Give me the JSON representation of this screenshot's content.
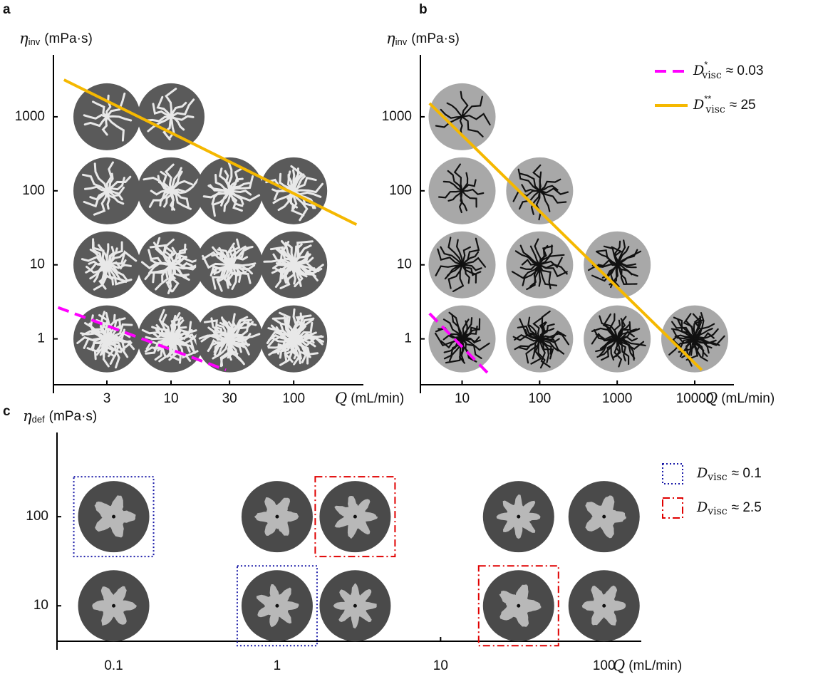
{
  "chart_data": [
    {
      "type": "scatter",
      "panel": "a",
      "xlog": true,
      "ylog": true,
      "xlim": [
        1.1,
        370
      ],
      "ylim": [
        0.24,
        5750
      ],
      "xticks": [
        3,
        10,
        30,
        100
      ],
      "yticks": [
        1,
        10,
        100,
        1000
      ],
      "x_label": {
        "symbol": "Q",
        "text": "(mL/min)"
      },
      "y_label": {
        "symbol": "η",
        "sub": "inv",
        "text": "(mPa·s)"
      },
      "disc_color": "#5a5a5a",
      "pattern_color": "#e8e8e8",
      "points": {
        "x": [
          3,
          10,
          3,
          10,
          30,
          100,
          3,
          10,
          30,
          100,
          3,
          10,
          30,
          100
        ],
        "y": [
          1000,
          1000,
          100,
          100,
          100,
          100,
          10,
          10,
          10,
          10,
          1,
          1,
          1,
          1
        ]
      },
      "series": [
        {
          "color": "#f5b800",
          "dash": "solid",
          "x": [
            1.34,
            325
          ],
          "y": [
            3160,
            35
          ]
        },
        {
          "color": "#ff00ff",
          "dash": "dashed",
          "x": [
            1.2,
            28
          ],
          "y": [
            2.65,
            0.38
          ]
        }
      ]
    },
    {
      "type": "scatter",
      "panel": "b",
      "xlog": true,
      "ylog": true,
      "xlim": [
        2.9,
        32000
      ],
      "ylim": [
        0.24,
        5750
      ],
      "xticks": [
        10,
        100,
        1000,
        10000
      ],
      "yticks": [
        1,
        10,
        100,
        1000
      ],
      "x_label": {
        "symbol": "Q",
        "text": "(mL/min)"
      },
      "y_label": {
        "symbol": "η",
        "sub": "inv",
        "text": "(mPa·s)"
      },
      "disc_color": "#a8a8a8",
      "pattern_color": "#111111",
      "points": {
        "x": [
          10,
          10,
          100,
          10,
          100,
          1000,
          10,
          100,
          1000,
          10000
        ],
        "y": [
          1000,
          100,
          100,
          10,
          10,
          10,
          1,
          1,
          1,
          1
        ]
      },
      "legend": "top-right",
      "series": [
        {
          "name": {
            "base": "D",
            "sup": "*",
            "sub": "visc",
            "text": "≈ 0.03"
          },
          "color": "#ff00ff",
          "dash": "dashed",
          "x": [
            3.8,
            23
          ],
          "y": [
            2.2,
            0.32
          ]
        },
        {
          "name": {
            "base": "D",
            "sup": "**",
            "sub": "visc",
            "text": "≈ 25"
          },
          "color": "#f5b800",
          "dash": "solid",
          "x": [
            3.8,
            12300
          ],
          "y": [
            1520,
            0.38
          ]
        }
      ]
    },
    {
      "type": "scatter",
      "panel": "c",
      "xlog": true,
      "ylog": true,
      "xlim": [
        0.045,
        169
      ],
      "ylim": [
        4,
        760
      ],
      "xticks": [
        0.1,
        1,
        10,
        100
      ],
      "yticks": [
        10,
        100
      ],
      "x_label": {
        "symbol": "Q",
        "text": "(mL/min)"
      },
      "y_label": {
        "symbol": "η",
        "sub": "def",
        "text": "(mPa·s)"
      },
      "disc_color": "#4a4a4a",
      "pattern_color": "#b8b8b8",
      "points": {
        "x": [
          0.1,
          1,
          3,
          30,
          100,
          0.1,
          1,
          3,
          30,
          100
        ],
        "y": [
          100,
          100,
          100,
          100,
          100,
          10,
          10,
          10,
          10,
          10
        ]
      },
      "legend": "top-right",
      "series": [
        {
          "name": {
            "base": "D",
            "sub": "visc",
            "text": "≈ 0.1"
          },
          "color": "#1a1aa8",
          "dash": "dotted",
          "marker": "box",
          "x": [
            0.1,
            1
          ],
          "y": [
            100,
            10
          ]
        },
        {
          "name": {
            "base": "D",
            "sub": "visc",
            "text": "≈ 2.5"
          },
          "color": "#e00000",
          "dash": "dashdot",
          "marker": "box",
          "x": [
            3,
            30
          ],
          "y": [
            100,
            10
          ]
        }
      ]
    }
  ]
}
